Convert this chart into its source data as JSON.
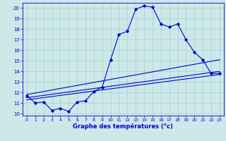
{
  "xlabel": "Graphe des températures (°c)",
  "xlim": [
    -0.5,
    23.5
  ],
  "ylim": [
    9.8,
    20.5
  ],
  "yticks": [
    10,
    11,
    12,
    13,
    14,
    15,
    16,
    17,
    18,
    19,
    20
  ],
  "xticks": [
    0,
    1,
    2,
    3,
    4,
    5,
    6,
    7,
    8,
    9,
    10,
    11,
    12,
    13,
    14,
    15,
    16,
    17,
    18,
    19,
    20,
    21,
    22,
    23
  ],
  "bg_color": "#cde8e8",
  "line_color": "#0000cc",
  "grid_color": "#aacece",
  "series_main": {
    "x": [
      0,
      1,
      2,
      3,
      4,
      5,
      6,
      7,
      8,
      9,
      10,
      11,
      12,
      13,
      14,
      15,
      16,
      17,
      18,
      19,
      20,
      21,
      22,
      23
    ],
    "y": [
      11.7,
      11.0,
      11.1,
      10.3,
      10.5,
      10.2,
      11.1,
      11.2,
      12.1,
      12.5,
      15.1,
      17.5,
      17.8,
      19.9,
      20.2,
      20.1,
      18.5,
      18.2,
      18.5,
      17.0,
      15.8,
      15.1,
      13.8,
      13.8
    ]
  },
  "series_trend": [
    {
      "x": [
        0,
        23
      ],
      "y": [
        11.8,
        15.1
      ]
    },
    {
      "x": [
        0,
        23
      ],
      "y": [
        11.5,
        14.0
      ]
    },
    {
      "x": [
        0,
        23
      ],
      "y": [
        11.3,
        13.7
      ]
    }
  ]
}
